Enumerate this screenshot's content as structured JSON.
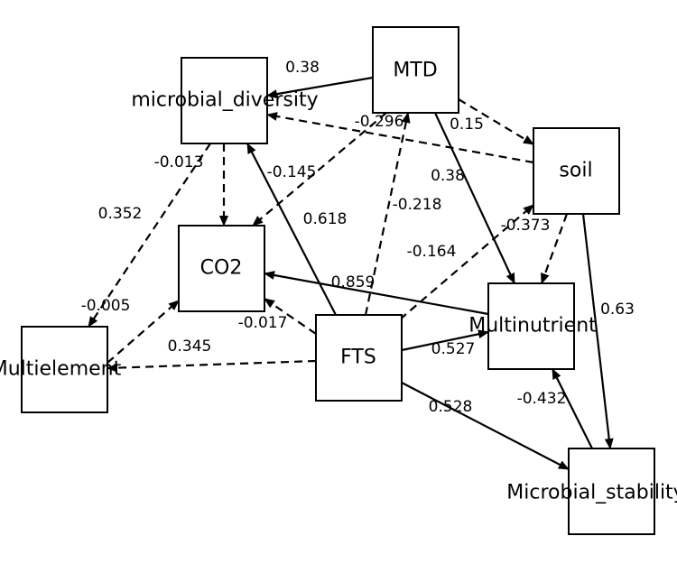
{
  "nodes": [
    {
      "id": "mtd",
      "label": "MTD"
    },
    {
      "id": "microbial_diversity",
      "label": "microbial_diversity"
    },
    {
      "id": "soil",
      "label": "soil"
    },
    {
      "id": "co2",
      "label": "CO2"
    },
    {
      "id": "multinutrient",
      "label": "Multinutrient"
    },
    {
      "id": "multielement",
      "label": "Multielement"
    },
    {
      "id": "fts",
      "label": "FTS"
    },
    {
      "id": "microbial_stability",
      "label": "Microbial_stability"
    }
  ],
  "edges": [
    {
      "from": "mtd",
      "to": "microbial_diversity",
      "label": "0.38",
      "style": "solid"
    },
    {
      "from": "mtd",
      "to": "soil",
      "label": "0.15",
      "style": "dashed"
    },
    {
      "from": "mtd",
      "to": "multinutrient",
      "label": "0.38",
      "style": "solid"
    },
    {
      "from": "soil",
      "to": "microbial_diversity",
      "label": "-0.296",
      "style": "dashed"
    },
    {
      "from": "microbial_diversity",
      "to": "co2",
      "label": "-0.013",
      "style": "dashed"
    },
    {
      "from": "microbial_diversity",
      "to": "multielement",
      "label": "0.352",
      "style": "dashed"
    },
    {
      "from": "mtd",
      "to": "co2",
      "label": "-0.145",
      "style": "dashed"
    },
    {
      "from": "fts",
      "to": "microbial_diversity",
      "label": "0.618",
      "style": "solid"
    },
    {
      "from": "fts",
      "to": "mtd",
      "label": "-0.218",
      "style": "dashed"
    },
    {
      "from": "fts",
      "to": "soil",
      "label": "-0.164",
      "style": "dashed"
    },
    {
      "from": "soil",
      "to": "multinutrient",
      "label": "-0.373",
      "style": "dashed"
    },
    {
      "from": "multinutrient",
      "to": "co2",
      "label": "0.859",
      "style": "solid"
    },
    {
      "from": "multielement",
      "to": "co2",
      "label": "-0.005",
      "style": "dashed"
    },
    {
      "from": "fts",
      "to": "co2",
      "label": "-0.017",
      "style": "dashed"
    },
    {
      "from": "fts",
      "to": "multielement",
      "label": "0.345",
      "style": "dashed"
    },
    {
      "from": "fts",
      "to": "multinutrient",
      "label": "0.527",
      "style": "solid"
    },
    {
      "from": "soil",
      "to": "microbial_stability",
      "label": "0.63",
      "style": "solid"
    },
    {
      "from": "fts",
      "to": "microbial_stability",
      "label": "0.528",
      "style": "solid"
    },
    {
      "from": "microbial_stability",
      "to": "multinutrient",
      "label": "-0.432",
      "style": "solid"
    }
  ]
}
